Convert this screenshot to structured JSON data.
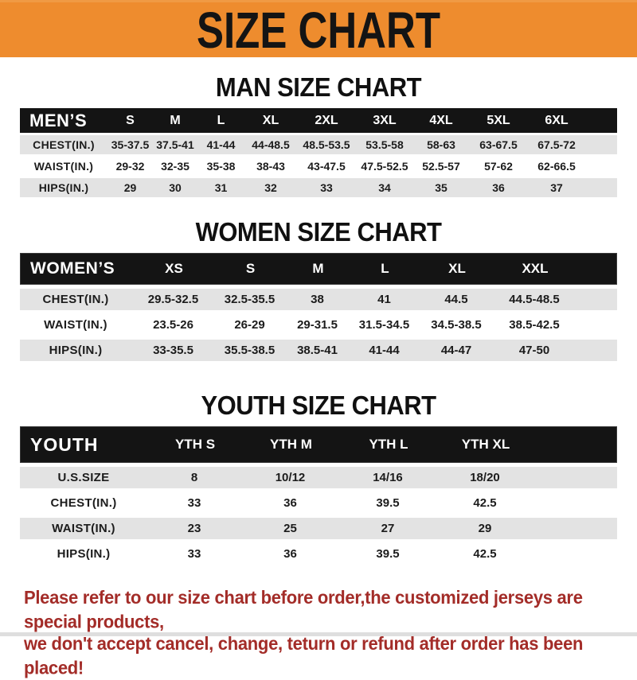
{
  "banner": {
    "title": "SIZE CHART",
    "bg_color": "#EE8C2E",
    "text_color": "#141414"
  },
  "colors": {
    "bar_bg": "#141414",
    "row_gray": "#E3E3E3",
    "footer_red": "#A32C28"
  },
  "sections": [
    {
      "heading": "MAN SIZE CHART",
      "label": "MEN’S",
      "columns": [
        "S",
        "M",
        "L",
        "XL",
        "2XL",
        "3XL",
        "4XL",
        "5XL",
        "6XL"
      ],
      "rows": [
        {
          "label": "CHEST(IN.)",
          "values": [
            "35-37.5",
            "37.5-41",
            "41-44",
            "44-48.5",
            "48.5-53.5",
            "53.5-58",
            "58-63",
            "63-67.5",
            "67.5-72"
          ]
        },
        {
          "label": "WAIST(IN.)",
          "values": [
            "29-32",
            "32-35",
            "35-38",
            "38-43",
            "43-47.5",
            "47.5-52.5",
            "52.5-57",
            "57-62",
            "62-66.5"
          ]
        },
        {
          "label": "HIPS(IN.)",
          "values": [
            "29",
            "30",
            "31",
            "32",
            "33",
            "34",
            "35",
            "36",
            "37"
          ]
        }
      ]
    },
    {
      "heading": "WOMEN SIZE CHART",
      "label": "WOMEN’S",
      "columns": [
        "XS",
        "S",
        "M",
        "L",
        "XL",
        "XXL"
      ],
      "rows": [
        {
          "label": "CHEST(IN.)",
          "values": [
            "29.5-32.5",
            "32.5-35.5",
            "38",
            "41",
            "44.5",
            "44.5-48.5"
          ]
        },
        {
          "label": "WAIST(IN.)",
          "values": [
            "23.5-26",
            "26-29",
            "29-31.5",
            "31.5-34.5",
            "34.5-38.5",
            "38.5-42.5"
          ]
        },
        {
          "label": "HIPS(IN.)",
          "values": [
            "33-35.5",
            "35.5-38.5",
            "38.5-41",
            "41-44",
            "44-47",
            "47-50"
          ]
        }
      ]
    },
    {
      "heading": "YOUTH SIZE CHART",
      "label": "YOUTH",
      "columns": [
        "YTH S",
        "YTH M",
        "YTH L",
        "YTH XL"
      ],
      "rows": [
        {
          "label": "U.S.SIZE",
          "values": [
            "8",
            "10/12",
            "14/16",
            "18/20"
          ]
        },
        {
          "label": "CHEST(IN.)",
          "values": [
            "33",
            "36",
            "39.5",
            "42.5"
          ]
        },
        {
          "label": "WAIST(IN.)",
          "values": [
            "23",
            "25",
            "27",
            "29"
          ]
        },
        {
          "label": "HIPS(IN.)",
          "values": [
            "33",
            "36",
            "39.5",
            "42.5"
          ]
        }
      ]
    }
  ],
  "footer": {
    "line1": "Please refer to our size chart before order,the customized jerseys are special products,",
    "line2": "we don't accept cancel, change, teturn or refund after order has been placed!"
  }
}
